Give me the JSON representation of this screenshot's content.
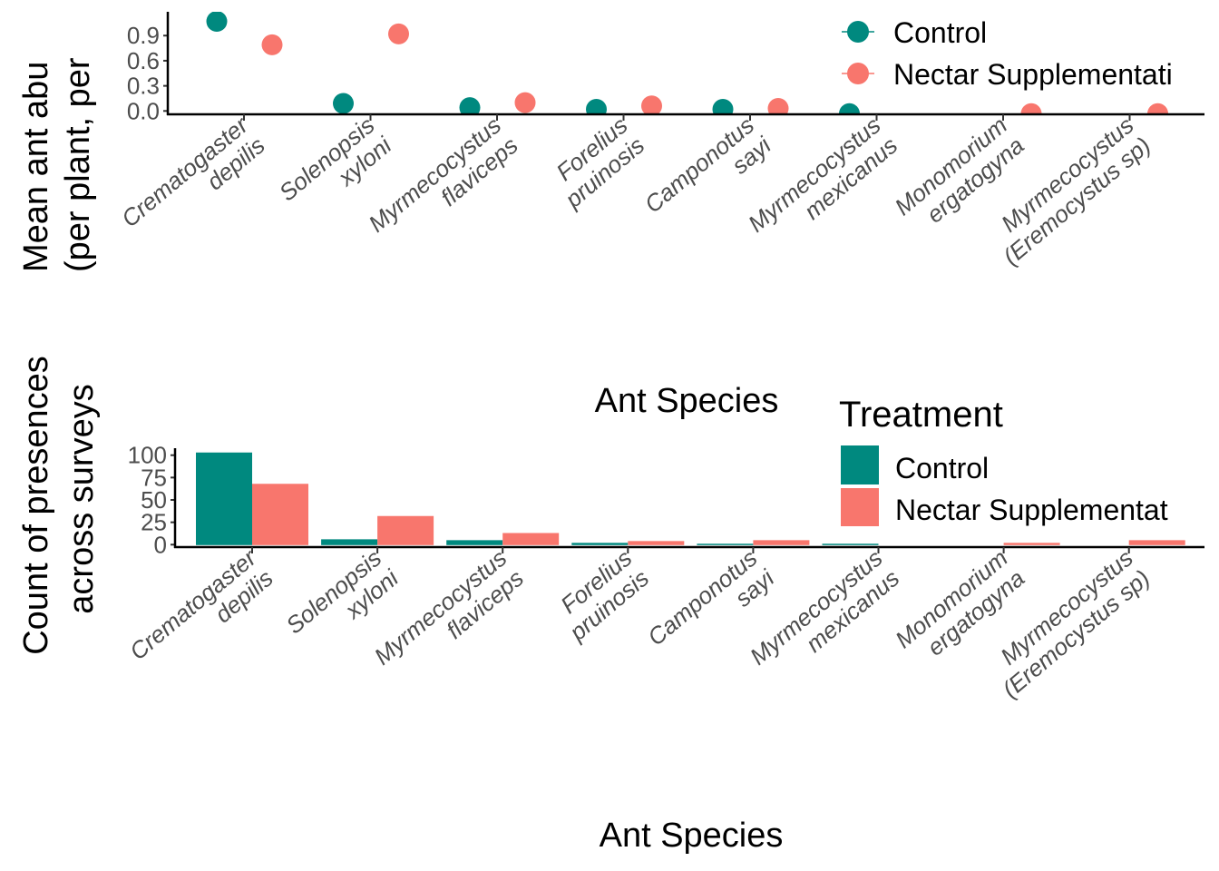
{
  "colors": {
    "control": "#00897f",
    "nectar": "#f8766d",
    "axis": "#000000",
    "tick": "#333333"
  },
  "chart_data": [
    {
      "type": "scatter",
      "title": "",
      "xlabel": "Ant Species",
      "ylabel_line1": "Mean ant abu",
      "ylabel_line2": "(per plant, per",
      "ylim": [
        0.0,
        1.15
      ],
      "yticks": [
        0.0,
        0.3,
        0.6,
        0.9
      ],
      "ytick_labels": [
        "0.0",
        "0.3",
        "0.6",
        "0.9"
      ],
      "grid": false,
      "legend_position": "top-right",
      "legend": {
        "title": "",
        "entries": [
          "Control",
          "Nectar Supplementati"
        ]
      },
      "categories": [
        [
          "Crematogaster",
          "depilis"
        ],
        [
          "Solenopsis",
          "xyloni"
        ],
        [
          "Myrmecocystus",
          "flaviceps"
        ],
        [
          "Forelius",
          "pruinosis"
        ],
        [
          "Camponotus",
          "sayi"
        ],
        [
          "Myrmecocystus",
          "mexicanus"
        ],
        [
          "Monomorium",
          "ergatogyna"
        ],
        [
          "Myrmecocystus",
          "(Eremocystus sp)"
        ]
      ],
      "series": [
        {
          "name": "Control",
          "values": [
            1.07,
            0.09,
            0.04,
            0.02,
            0.02,
            0.0,
            null,
            null
          ]
        },
        {
          "name": "Nectar Supplementation",
          "values": [
            0.79,
            0.92,
            0.1,
            0.06,
            0.03,
            null,
            0.0,
            0.0
          ]
        }
      ]
    },
    {
      "type": "bar",
      "title": "",
      "xlabel": "Ant Species",
      "ylabel_line1": "Count of presences",
      "ylabel_line2": "across surveys",
      "ylim": [
        0,
        105
      ],
      "yticks": [
        0,
        25,
        50,
        75,
        100
      ],
      "ytick_labels": [
        "0",
        "25",
        "50",
        "75",
        "100"
      ],
      "grid": false,
      "legend_position": "right",
      "legend": {
        "title": "Treatment",
        "entries": [
          "Control",
          "Nectar Supplementat"
        ]
      },
      "categories": [
        [
          "Crematogaster",
          "depilis"
        ],
        [
          "Solenopsis",
          "xyloni"
        ],
        [
          "Myrmecocystus",
          "flaviceps"
        ],
        [
          "Forelius",
          "pruinosis"
        ],
        [
          "Camponotus",
          "sayi"
        ],
        [
          "Myrmecocystus",
          "mexicanus"
        ],
        [
          "Monomorium",
          "ergatogyna"
        ],
        [
          "Myrmecocystus",
          "(Eremocystus sp)"
        ]
      ],
      "series": [
        {
          "name": "Control",
          "values": [
            103,
            6,
            5,
            2,
            1,
            1,
            0,
            0
          ]
        },
        {
          "name": "Nectar Supplementation",
          "values": [
            68,
            32,
            13,
            4,
            5,
            0,
            2,
            5
          ]
        }
      ]
    }
  ]
}
